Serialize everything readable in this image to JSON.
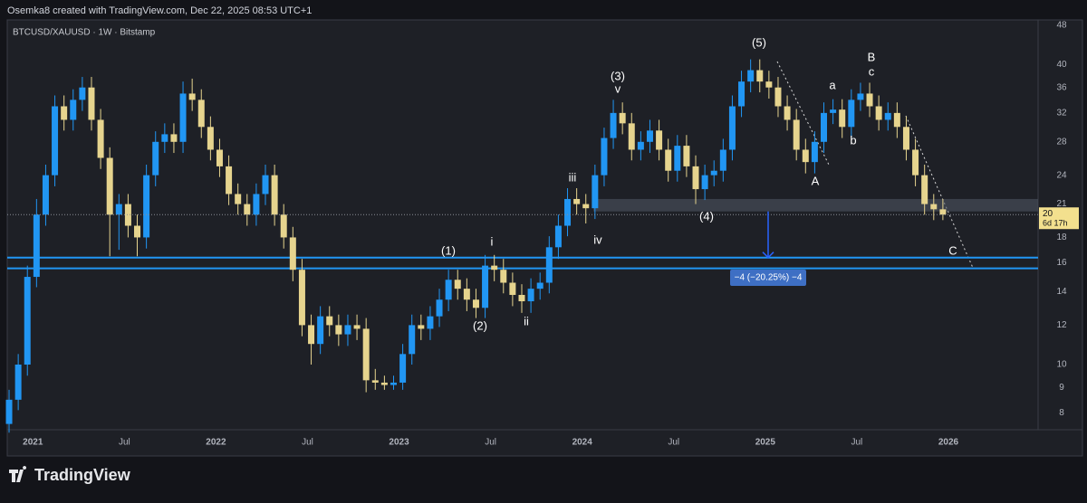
{
  "header": "Osemka8 created with TradingView.com, Dec 22, 2025 08:53 UTC+1",
  "brand": "TradingView",
  "chart_data": {
    "type": "candlestick",
    "title": "BTCUSD/XAUUSD · 1W · Bitstamp",
    "up_color": "#2196f3",
    "down_color": "#e6d48e",
    "log_scale": true,
    "grid": false,
    "xlim": [
      2020.86,
      2026.49
    ],
    "ylim": [
      7.4,
      49.2
    ],
    "xticks": [
      2021,
      {
        "value": 2021.5,
        "label": "Jul"
      },
      2022,
      {
        "value": 2022.5,
        "label": "Jul"
      },
      2023,
      {
        "value": 2023.5,
        "label": "Jul"
      },
      2024,
      {
        "value": 2024.5,
        "label": "Jul"
      },
      2025,
      {
        "value": 2025.5,
        "label": "Jul"
      },
      2026
    ],
    "yticks": [
      8,
      9,
      10,
      12,
      14,
      16,
      18,
      21,
      24,
      28,
      32,
      36,
      40,
      48
    ],
    "x": [
      2020.87,
      2020.92,
      2020.97,
      2021.02,
      2021.07,
      2021.12,
      2021.17,
      2021.22,
      2021.27,
      2021.32,
      2021.37,
      2021.42,
      2021.47,
      2021.52,
      2021.57,
      2021.62,
      2021.67,
      2021.72,
      2021.77,
      2021.82,
      2021.87,
      2021.92,
      2021.97,
      2022.02,
      2022.07,
      2022.12,
      2022.17,
      2022.22,
      2022.27,
      2022.32,
      2022.37,
      2022.42,
      2022.47,
      2022.52,
      2022.57,
      2022.62,
      2022.67,
      2022.72,
      2022.77,
      2022.82,
      2022.87,
      2022.92,
      2022.97,
      2023.02,
      2023.07,
      2023.12,
      2023.17,
      2023.22,
      2023.27,
      2023.32,
      2023.37,
      2023.42,
      2023.47,
      2023.52,
      2023.57,
      2023.62,
      2023.67,
      2023.72,
      2023.77,
      2023.82,
      2023.87,
      2023.92,
      2023.97,
      2024.02,
      2024.07,
      2024.12,
      2024.17,
      2024.22,
      2024.27,
      2024.32,
      2024.37,
      2024.42,
      2024.47,
      2024.52,
      2024.57,
      2024.62,
      2024.67,
      2024.72,
      2024.77,
      2024.82,
      2024.87,
      2024.92,
      2024.97,
      2025.02,
      2025.07,
      2025.12,
      2025.17,
      2025.22,
      2025.27,
      2025.32,
      2025.37,
      2025.42,
      2025.47,
      2025.52,
      2025.57,
      2025.62,
      2025.67,
      2025.72,
      2025.77,
      2025.82,
      2025.87,
      2025.92,
      2025.97
    ],
    "open": [
      7.6,
      8.5,
      10,
      15,
      20,
      24,
      33,
      31,
      34,
      36,
      31,
      26,
      20,
      21,
      19,
      18,
      24,
      28,
      29,
      28,
      35,
      34,
      30,
      27,
      25,
      22,
      21,
      20,
      22,
      24,
      20,
      18,
      15.5,
      12,
      11,
      12.5,
      12,
      11.5,
      12,
      11.8,
      9.3,
      9.2,
      9.1,
      9.2,
      10.5,
      12,
      11.8,
      12.5,
      13.5,
      14.8,
      14.2,
      13.5,
      13,
      15.8,
      15.5,
      14.6,
      13.8,
      13.4,
      14.2,
      14.6,
      17.2,
      19,
      21.5,
      21,
      20.6,
      24,
      28.5,
      32,
      30.5,
      27,
      28,
      29.5,
      27,
      24.5,
      27.5,
      25,
      22.5,
      24,
      24.5,
      27,
      33,
      37,
      39,
      37,
      36,
      33,
      31,
      27,
      25.5,
      28,
      32,
      32.5,
      30,
      34,
      35,
      33,
      31,
      32,
      30,
      27,
      24,
      21,
      20.5
    ],
    "high": [
      8.9,
      10.5,
      15.8,
      21.5,
      25.2,
      34.7,
      34.7,
      35.7,
      37.8,
      37.8,
      32.6,
      27.3,
      22,
      22,
      20,
      25.2,
      29.4,
      30.5,
      30.5,
      37,
      37.5,
      35.7,
      31.5,
      28.4,
      26.3,
      23.1,
      22,
      23.1,
      25.2,
      25.2,
      21,
      18.9,
      16.3,
      12.6,
      13.1,
      13.1,
      12.6,
      12.6,
      12.6,
      12.4,
      9.8,
      9.5,
      9.5,
      11,
      12.6,
      12.6,
      13.1,
      14.2,
      15.5,
      15.5,
      14.9,
      14.2,
      16.6,
      16.6,
      16.3,
      15.3,
      14.5,
      14.9,
      15.3,
      18.1,
      20,
      22.6,
      22.6,
      22,
      25.2,
      29.9,
      34,
      33.6,
      32,
      29.4,
      31,
      31,
      28.4,
      28.9,
      28.9,
      26.3,
      25.2,
      25.7,
      28.4,
      34.7,
      38.9,
      41,
      41,
      38.9,
      37.8,
      34.7,
      32.6,
      28.4,
      29.4,
      33.6,
      34.1,
      34.1,
      35.7,
      36.8,
      36.8,
      34.7,
      33.6,
      33.6,
      31.5,
      28.4,
      25.2,
      22,
      21.5
    ],
    "low": [
      7.3,
      8.1,
      9.5,
      14.3,
      19,
      22.8,
      29.5,
      29.5,
      32.3,
      29.5,
      24.7,
      16.5,
      17,
      18,
      16.5,
      17.1,
      22.8,
      26.6,
      26.6,
      26.6,
      32.3,
      28.5,
      25.7,
      23.8,
      20.9,
      20,
      19,
      19,
      20.9,
      19,
      17.1,
      14.7,
      11.4,
      10,
      10.5,
      11.4,
      10.9,
      10.9,
      11.2,
      8.8,
      8.9,
      8.9,
      8.9,
      8.9,
      10,
      11.2,
      11.2,
      11.9,
      12.8,
      13.5,
      12.8,
      12.4,
      12.4,
      14.7,
      13.9,
      13.1,
      12.7,
      12.7,
      13.5,
      13.9,
      16.3,
      18.1,
      20,
      19.2,
      19.6,
      22.8,
      27.1,
      29,
      25.7,
      25.7,
      26.6,
      25.7,
      23.3,
      23.3,
      23.8,
      21,
      21.4,
      22.8,
      23.3,
      25.7,
      31.4,
      35.2,
      35.2,
      34.2,
      31.4,
      29.5,
      25.7,
      24.2,
      24.2,
      26.6,
      30.4,
      28.5,
      28.5,
      32.3,
      31.4,
      29.5,
      29.5,
      28.5,
      25.7,
      22.8,
      20,
      19.5,
      19.5
    ],
    "close": [
      8.5,
      10,
      15,
      20,
      24,
      33,
      31,
      34,
      36,
      31,
      26,
      20,
      21,
      19,
      18,
      24,
      28,
      29,
      28,
      35,
      34,
      30,
      27,
      25,
      22,
      21,
      20,
      22,
      24,
      20,
      18,
      15.5,
      12,
      11,
      12.5,
      12,
      11.5,
      12,
      11.8,
      9.3,
      9.2,
      9.1,
      9.2,
      10.5,
      12,
      11.8,
      12.5,
      13.5,
      14.8,
      14.2,
      13.5,
      13,
      15.8,
      15.5,
      14.6,
      13.8,
      13.4,
      14.2,
      14.6,
      17.2,
      19,
      21.5,
      21,
      20.6,
      24,
      28.5,
      32,
      30.5,
      27,
      28,
      29.5,
      27,
      24.5,
      27.5,
      25,
      22.5,
      24,
      24.5,
      27,
      33,
      37,
      39,
      37,
      36,
      33,
      31,
      27,
      25.5,
      28,
      32,
      32.5,
      30,
      34,
      35,
      33,
      31,
      32,
      30,
      27,
      24,
      21,
      20.5,
      20
    ],
    "last_price": 20,
    "countdown": "6d 17h",
    "hlines": [
      16.4,
      15.6
    ],
    "zone": [
      20.3,
      21.5
    ],
    "measure_label": "−4 (−20.25%) −4",
    "annotations": [
      "(1)",
      "(2)",
      "(3)",
      "v",
      "(4)",
      "(5)",
      "i",
      "ii",
      "iii",
      "iv",
      "A",
      "a",
      "b",
      "B",
      "c",
      "C"
    ]
  }
}
